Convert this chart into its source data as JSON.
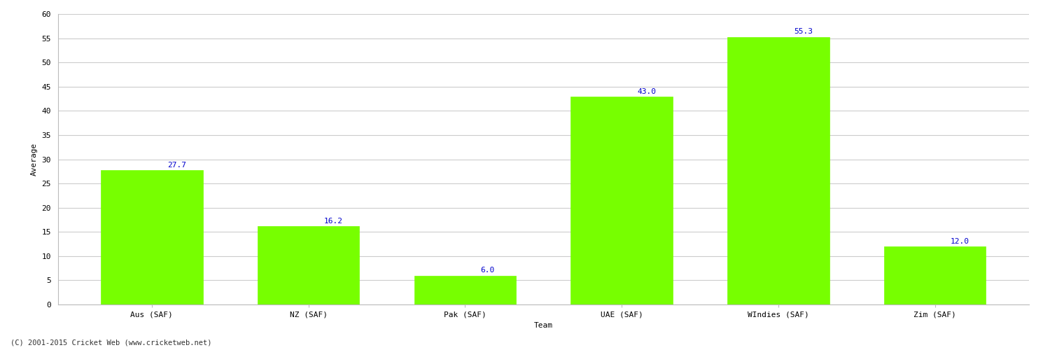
{
  "categories": [
    "Aus (SAF)",
    "NZ (SAF)",
    "Pak (SAF)",
    "UAE (SAF)",
    "WIndies (SAF)",
    "Zim (SAF)"
  ],
  "values": [
    27.7,
    16.2,
    6.0,
    43.0,
    55.3,
    12.0
  ],
  "bar_color": "#77ff00",
  "bar_edge_color": "#77ff00",
  "label_color": "#0000cc",
  "ylabel": "Average",
  "xlabel": "Team",
  "ylim": [
    0,
    60
  ],
  "yticks": [
    0,
    5,
    10,
    15,
    20,
    25,
    30,
    35,
    40,
    45,
    50,
    55,
    60
  ],
  "grid_color": "#cccccc",
  "background_color": "#ffffff",
  "footnote": "(C) 2001-2015 Cricket Web (www.cricketweb.net)",
  "label_fontsize": 8,
  "tick_fontsize": 8,
  "ylabel_fontsize": 8,
  "xlabel_fontsize": 8,
  "footnote_fontsize": 7.5
}
